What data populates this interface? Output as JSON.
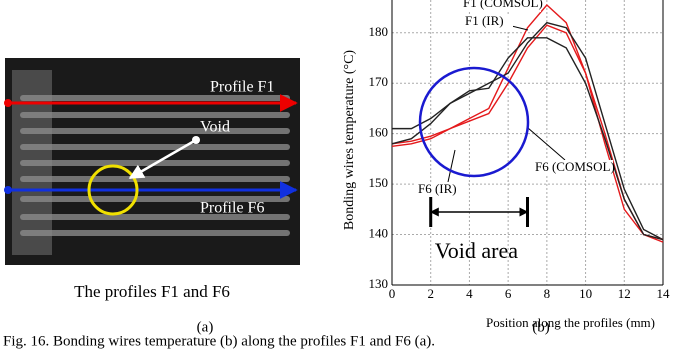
{
  "panel_a": {
    "labels": [
      "Profile F1",
      "Void",
      "Profile F6"
    ],
    "caption": "The profiles F1 and F6",
    "tag": "(a)"
  },
  "chart_data": {
    "type": "line",
    "xlabel": "Position along the profiles (mm)",
    "ylabel": "Bonding wires temperature (°C)",
    "x": [
      0,
      1,
      2,
      3,
      4,
      5,
      6,
      7,
      8,
      9,
      10,
      11,
      12,
      13,
      14
    ],
    "series": [
      {
        "name": "F1 (COMSOL)",
        "color": "#e41a1c",
        "values": [
          158,
          158.5,
          159.5,
          161,
          163,
          165,
          173,
          181,
          185.5,
          182,
          172,
          158,
          145,
          140,
          138.5
        ]
      },
      {
        "name": "F1 (IR)",
        "color": "#222222",
        "values": [
          161,
          161,
          163,
          166,
          168,
          170,
          172,
          178,
          182,
          181,
          175,
          162,
          149,
          141,
          139
        ]
      },
      {
        "name": "F6 (COMSOL)",
        "color": "#e41a1c",
        "values": [
          157.5,
          158,
          159,
          161,
          162.5,
          164,
          170,
          177,
          181.5,
          180,
          172,
          160,
          147,
          140,
          139
        ]
      },
      {
        "name": "F6 (IR)",
        "color": "#222222",
        "values": [
          158,
          159,
          162,
          166,
          168.5,
          169,
          175,
          179,
          179,
          177,
          170,
          159,
          147,
          140,
          139
        ]
      }
    ],
    "xlim": [
      0,
      14
    ],
    "xticks": [
      0,
      2,
      4,
      6,
      8,
      10,
      12,
      14
    ],
    "ylim": [
      130,
      186.5
    ],
    "yticks": [
      130,
      140,
      150,
      160,
      170,
      180
    ],
    "grid": true,
    "void_area": {
      "label": "Void area",
      "x": [
        2,
        7
      ]
    },
    "tag": "(b)"
  },
  "caption": "Fig. 16. Bonding wires temperature (b) along the profiles F1 and F6 (a)."
}
